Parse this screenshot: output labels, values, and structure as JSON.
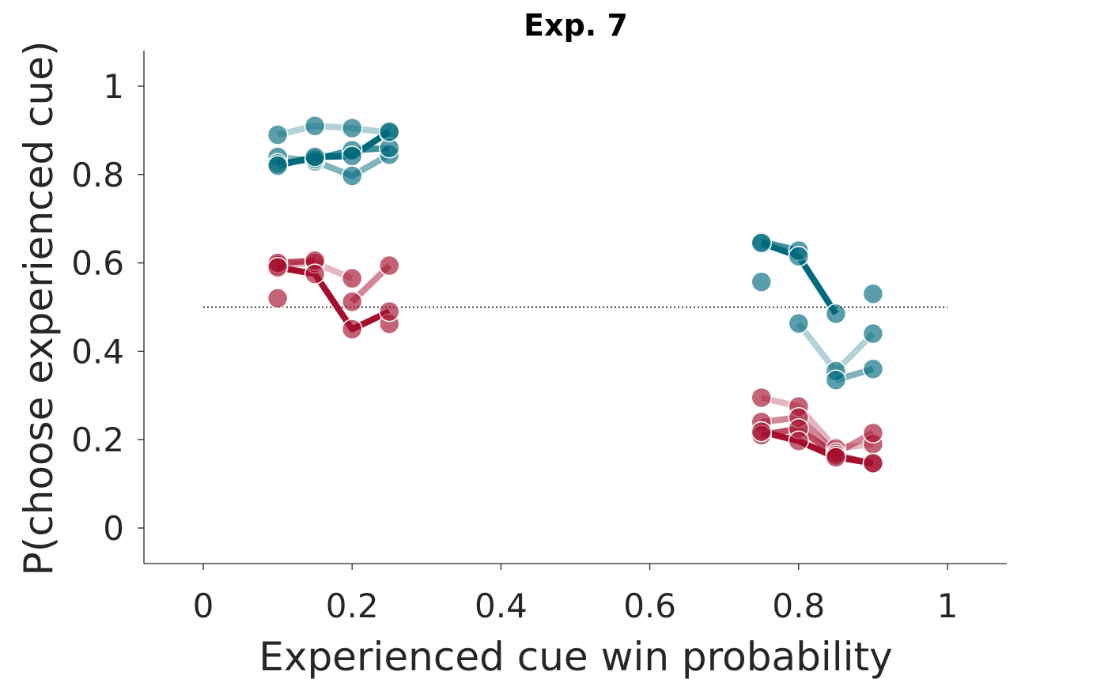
{
  "colors": {
    "teal": "#006a7d",
    "red": "#a50f2d",
    "axis": "#262626"
  },
  "chart_data": {
    "type": "line",
    "title": "Exp. 7",
    "xlabel": "Experienced cue win probability",
    "ylabel": "P(choose experienced cue)",
    "xlim": [
      -0.08,
      1.08
    ],
    "ylim": [
      -0.08,
      1.08
    ],
    "xticks": [
      0,
      0.2,
      0.4,
      0.6,
      0.8,
      1
    ],
    "xtick_labels": [
      "0",
      "0.2",
      "0.4",
      "0.6",
      "0.8",
      "1"
    ],
    "yticks": [
      0,
      0.2,
      0.4,
      0.6,
      0.8,
      1
    ],
    "ytick_labels": [
      "0",
      "0.2",
      "0.4",
      "0.6",
      "0.8",
      "1"
    ],
    "reference_line": {
      "y": 0.5,
      "x_range": [
        0,
        1
      ],
      "style": "dotted"
    },
    "grid": false,
    "series": [
      {
        "color": "#006a7d",
        "line_opacity": 0.3,
        "segments": [
          {
            "x": [
              0.1,
              0.15,
              0.2,
              0.25
            ],
            "y": [
              0.89,
              0.91,
              0.905,
              0.895
            ]
          },
          {
            "x": [
              0.8,
              0.85,
              0.9
            ],
            "y": [
              0.463,
              0.355,
              0.44
            ]
          }
        ]
      },
      {
        "color": "#006a7d",
        "line_opacity": 0.5,
        "segments": [
          {
            "x": [
              0.1,
              0.15,
              0.2,
              0.25
            ],
            "y": [
              0.84,
              0.83,
              0.797,
              0.845
            ]
          },
          {
            "x": [
              0.75,
              0.8,
              0.85,
              0.9
            ],
            "y": [
              0.557,
              null,
              0.335,
              0.36
            ]
          }
        ]
      },
      {
        "color": "#006a7d",
        "line_opacity": 0.75,
        "segments": [
          {
            "x": [
              0.1,
              0.15,
              0.2,
              0.25
            ],
            "y": [
              0.825,
              0.835,
              0.855,
              0.86
            ]
          },
          {
            "x": [
              0.75,
              0.8,
              0.85,
              0.9
            ],
            "y": [
              0.648,
              0.628,
              null,
              0.53
            ]
          }
        ]
      },
      {
        "color": "#006a7d",
        "line_opacity": 1.0,
        "segments": [
          {
            "x": [
              0.1,
              0.15,
              0.2,
              0.25
            ],
            "y": [
              0.82,
              0.84,
              0.842,
              0.897
            ]
          },
          {
            "x": [
              0.75,
              0.8,
              0.85,
              0.9
            ],
            "y": [
              0.645,
              0.615,
              0.485,
              null
            ]
          }
        ]
      },
      {
        "color": "#a50f2d",
        "line_opacity": 0.3,
        "segments": [
          {
            "x": [
              0.1,
              0.15,
              0.2,
              0.25
            ],
            "y": [
              0.595,
              0.6,
              0.565,
              null
            ]
          },
          {
            "x": [
              0.75,
              0.8,
              0.85,
              0.9
            ],
            "y": [
              0.295,
              0.275,
              0.18,
              0.19
            ]
          }
        ]
      },
      {
        "color": "#a50f2d",
        "line_opacity": 0.5,
        "segments": [
          {
            "x": [
              0.1,
              0.15,
              0.2,
              0.25
            ],
            "y": [
              0.52,
              null,
              0.512,
              0.594
            ]
          },
          {
            "x": [
              0.75,
              0.8,
              0.85,
              0.9
            ],
            "y": [
              0.24,
              0.25,
              0.17,
              0.215
            ]
          }
        ]
      },
      {
        "color": "#a50f2d",
        "line_opacity": 0.75,
        "segments": [
          {
            "x": [
              0.1,
              0.15,
              0.2,
              0.25
            ],
            "y": [
              0.6,
              0.605,
              null,
              0.462
            ]
          },
          {
            "x": [
              0.75,
              0.8,
              0.85,
              0.9
            ],
            "y": [
              0.21,
              0.225,
              0.165,
              0.145
            ]
          }
        ]
      },
      {
        "color": "#a50f2d",
        "line_opacity": 1.0,
        "segments": [
          {
            "x": [
              0.1,
              0.15,
              0.2,
              0.25
            ],
            "y": [
              0.59,
              0.575,
              0.45,
              0.49
            ]
          },
          {
            "x": [
              0.75,
              0.8,
              0.85,
              0.9
            ],
            "y": [
              0.218,
              0.197,
              0.16,
              0.147
            ]
          }
        ]
      }
    ]
  }
}
